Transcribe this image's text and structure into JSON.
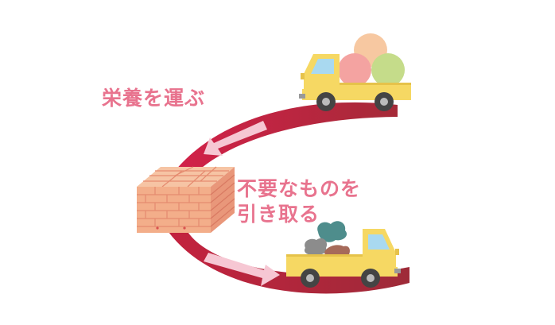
{
  "labels": {
    "deliver_nutrients": "栄養を運ぶ",
    "remove_waste_line1": "不要なものを",
    "remove_waste_line2": "引き取る"
  },
  "colors": {
    "arc_top": "#d6204a",
    "arc_bottom": "#a52a38",
    "arrow": "#f6c7d3",
    "label": "#e8738e",
    "truck_body": "#f6d863",
    "truck_cab_window": "#a9d9f0",
    "tire": "#444444",
    "hub": "#bbbbbb",
    "brick": "#f0b090",
    "brick_line": "#e58a6f",
    "ball_peach": "#f7c8a1",
    "ball_pink": "#f4a3a1",
    "ball_green": "#c5dc8a",
    "waste_teal": "#4e8d8c",
    "waste_gray": "#8c8c8c",
    "waste_brown": "#a66a5a"
  },
  "icons": {
    "top_truck": "truck-with-nutrients-icon",
    "bottom_truck": "truck-with-waste-icon",
    "cell": "brick-block-icon",
    "arrows": "arrow-icon"
  }
}
